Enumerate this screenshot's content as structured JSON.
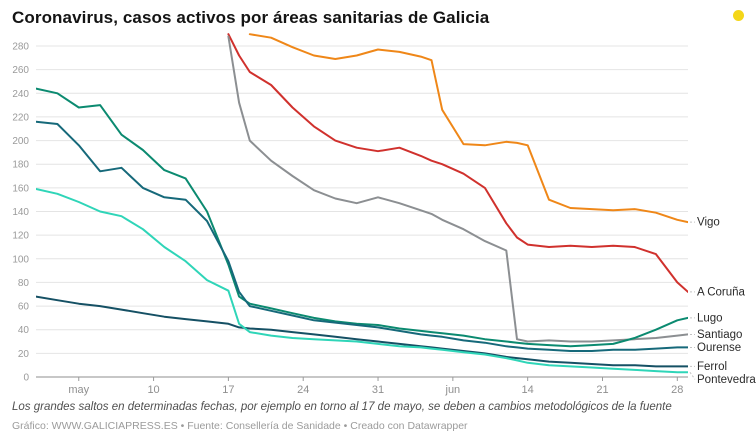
{
  "header": {
    "title": "Coronavirus, casos activos por áreas sanitarias de Galicia",
    "logo_color": "#f4d618"
  },
  "footer": {
    "note": "Los grandes saltos en determinadas fechas, por ejemplo en torno al 17 de mayo, se deben a cambios metodológicos de la fuente",
    "credits": "Gráfico: WWW.GALICIAPRESS.ES • Fuente: Consellería de Sanidade • Creado con Datawrapper"
  },
  "chart_data": {
    "type": "line",
    "title": "Coronavirus, casos activos por áreas sanitarias de Galicia",
    "xlabel": "",
    "ylabel": "",
    "grid": true,
    "legend_position": "right-edge-labels",
    "ylim": [
      0,
      290
    ],
    "xlim_days": [
      0,
      61
    ],
    "y_ticks": [
      0,
      20,
      40,
      60,
      80,
      100,
      120,
      140,
      160,
      180,
      200,
      220,
      240,
      260,
      280
    ],
    "x_ticks": [
      {
        "day": 4,
        "label": "may"
      },
      {
        "day": 11,
        "label": "10"
      },
      {
        "day": 18,
        "label": "17"
      },
      {
        "day": 25,
        "label": "24"
      },
      {
        "day": 32,
        "label": "31"
      },
      {
        "day": 39,
        "label": "jun"
      },
      {
        "day": 46,
        "label": "14"
      },
      {
        "day": 53,
        "label": "21"
      },
      {
        "day": 60,
        "label": "28"
      }
    ],
    "x_days": [
      0,
      2,
      4,
      6,
      8,
      10,
      12,
      14,
      16,
      18,
      19,
      20,
      22,
      24,
      26,
      28,
      30,
      32,
      34,
      36,
      37,
      38,
      40,
      42,
      44,
      45,
      46,
      48,
      50,
      52,
      54,
      56,
      58,
      60,
      61
    ],
    "series": [
      {
        "name": "Vigo",
        "color": "#ef8718",
        "values": [
          null,
          null,
          null,
          null,
          null,
          null,
          null,
          null,
          null,
          null,
          null,
          290,
          287,
          279,
          272,
          269,
          272,
          277,
          275,
          271,
          268,
          226,
          197,
          196,
          199,
          198,
          196,
          150,
          143,
          142,
          141,
          142,
          139,
          133,
          131
        ]
      },
      {
        "name": "A Coruña",
        "color": "#d0312d",
        "values": [
          null,
          null,
          null,
          null,
          null,
          null,
          null,
          null,
          null,
          290,
          272,
          258,
          247,
          228,
          212,
          200,
          194,
          191,
          194,
          187,
          183,
          180,
          172,
          160,
          130,
          118,
          112,
          110,
          111,
          110,
          111,
          110,
          104,
          80,
          72
        ]
      },
      {
        "name": "Santiago",
        "color": "#8c8f92",
        "values": [
          null,
          null,
          null,
          null,
          null,
          null,
          null,
          null,
          null,
          288,
          232,
          200,
          183,
          170,
          158,
          151,
          147,
          152,
          147,
          141,
          138,
          133,
          125,
          115,
          107,
          32,
          30,
          31,
          30,
          30,
          31,
          32,
          33,
          35,
          36
        ]
      },
      {
        "name": "Lugo",
        "color": "#0b8a70",
        "values": [
          244,
          240,
          228,
          230,
          205,
          192,
          175,
          168,
          140,
          95,
          68,
          62,
          58,
          54,
          50,
          47,
          45,
          44,
          41,
          39,
          38,
          37,
          35,
          32,
          30,
          29,
          28,
          27,
          26,
          27,
          28,
          33,
          40,
          48,
          50
        ]
      },
      {
        "name": "Ourense",
        "color": "#16697a",
        "values": [
          216,
          214,
          196,
          174,
          177,
          160,
          152,
          150,
          132,
          98,
          72,
          60,
          56,
          52,
          48,
          46,
          44,
          42,
          39,
          36,
          35,
          34,
          31,
          29,
          26,
          25,
          24,
          23,
          22,
          22,
          23,
          23,
          24,
          25,
          25
        ]
      },
      {
        "name": "Ferrol",
        "color": "#155064",
        "values": [
          68,
          65,
          62,
          60,
          57,
          54,
          51,
          49,
          47,
          45,
          42,
          41,
          40,
          38,
          36,
          34,
          32,
          30,
          28,
          26,
          25,
          24,
          22,
          20,
          17,
          16,
          15,
          13,
          12,
          11,
          10,
          10,
          9,
          9,
          9
        ]
      },
      {
        "name": "Pontevedra",
        "color": "#2fd5b8",
        "values": [
          159,
          155,
          148,
          140,
          136,
          125,
          110,
          98,
          82,
          73,
          45,
          38,
          35,
          33,
          32,
          31,
          30,
          28,
          26,
          25,
          24,
          23,
          21,
          19,
          16,
          14,
          12,
          10,
          9,
          8,
          7,
          6,
          5,
          4,
          4
        ]
      }
    ]
  }
}
